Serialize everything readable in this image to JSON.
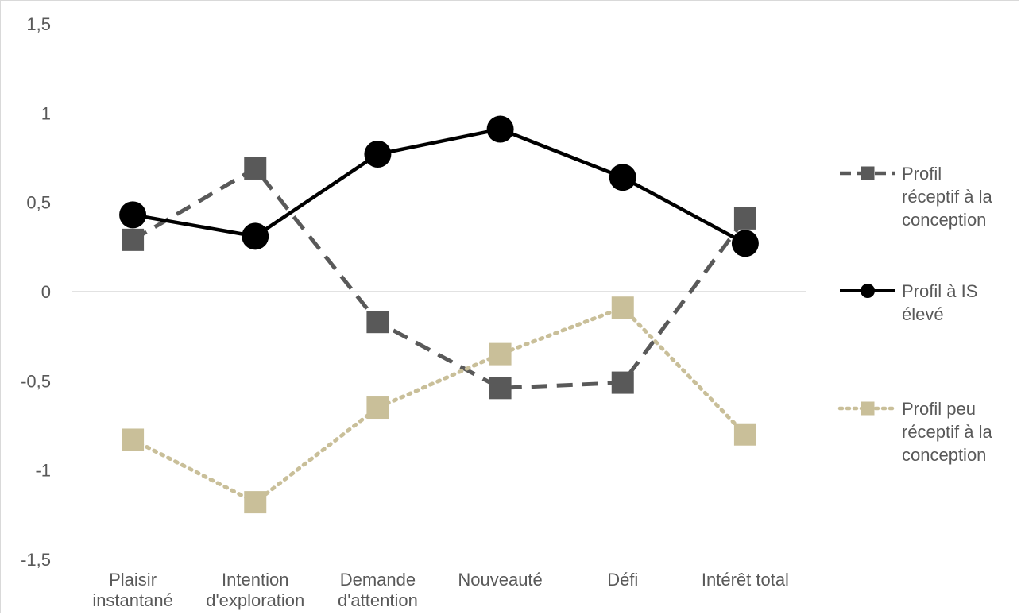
{
  "chart_data": {
    "type": "line",
    "categories": [
      [
        "Plaisir",
        "instantané"
      ],
      [
        "Intention",
        "d'exploration"
      ],
      [
        "Demande",
        "d'attention"
      ],
      [
        "Nouveauté"
      ],
      [
        "Défi"
      ],
      [
        "Intérêt total"
      ]
    ],
    "ylim": [
      -1.5,
      1.5
    ],
    "yticks": [
      {
        "value": 1.5,
        "label": "1,5"
      },
      {
        "value": 1,
        "label": "1"
      },
      {
        "value": 0.5,
        "label": "0,5"
      },
      {
        "value": 0,
        "label": "0"
      },
      {
        "value": -0.5,
        "label": "-0,5"
      },
      {
        "value": -1,
        "label": "-1"
      },
      {
        "value": -1.5,
        "label": "-1,5"
      }
    ],
    "grid": false,
    "zero_line": true,
    "legend_position": "right",
    "series": [
      {
        "name": [
          "Profil",
          "réceptif à la",
          "conception"
        ],
        "values": [
          0.29,
          0.69,
          -0.17,
          -0.54,
          -0.51,
          0.41
        ],
        "color": "#595959",
        "line_style": "dashed",
        "marker": "square"
      },
      {
        "name": [
          "Profil à IS",
          "élevé"
        ],
        "values": [
          0.43,
          0.31,
          0.77,
          0.91,
          0.64,
          0.27
        ],
        "color": "#000000",
        "line_style": "solid",
        "marker": "circle"
      },
      {
        "name": [
          "Profil peu",
          "réceptif à la",
          "conception"
        ],
        "values": [
          -0.83,
          -1.18,
          -0.65,
          -0.35,
          -0.09,
          -0.8
        ],
        "color": "#c9bf99",
        "line_style": "dotted",
        "marker": "square"
      }
    ]
  }
}
